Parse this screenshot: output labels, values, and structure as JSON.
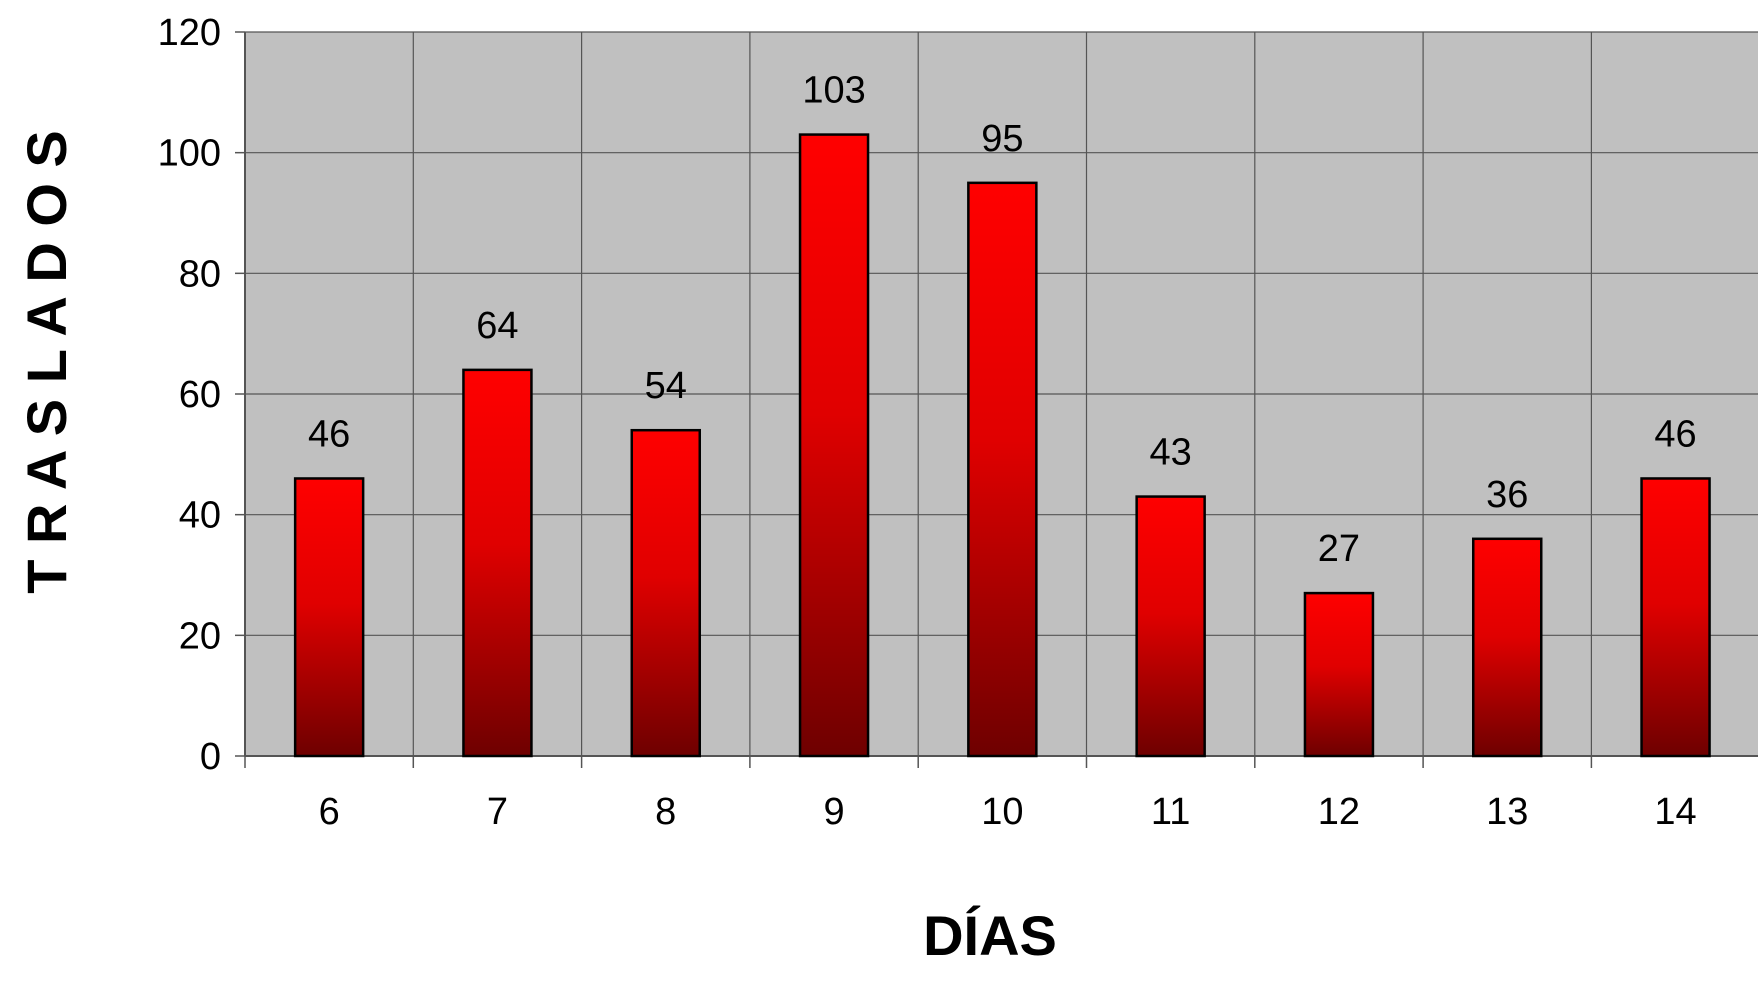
{
  "chart_data": {
    "type": "bar",
    "title": "",
    "xlabel": "DÍAS",
    "ylabel": "T R A S L A D O S",
    "categories": [
      "6",
      "7",
      "8",
      "9",
      "10",
      "11",
      "12",
      "13",
      "14"
    ],
    "values": [
      46,
      64,
      54,
      103,
      95,
      43,
      27,
      36,
      46
    ],
    "data_labels": [
      "46",
      "64",
      "54",
      "103",
      "95",
      "43",
      "27",
      "36",
      "46"
    ],
    "ylim": [
      0,
      120
    ],
    "yticks": [
      "0",
      "20",
      "40",
      "60",
      "80",
      "100",
      "120"
    ],
    "grid": true,
    "legend": "none",
    "colors": {
      "plot_background": "#c0c0c0",
      "bar_top": "#ff0000",
      "bar_bottom": "#6e0000",
      "bar_outline": "#000000",
      "gridline": "#555555"
    }
  }
}
